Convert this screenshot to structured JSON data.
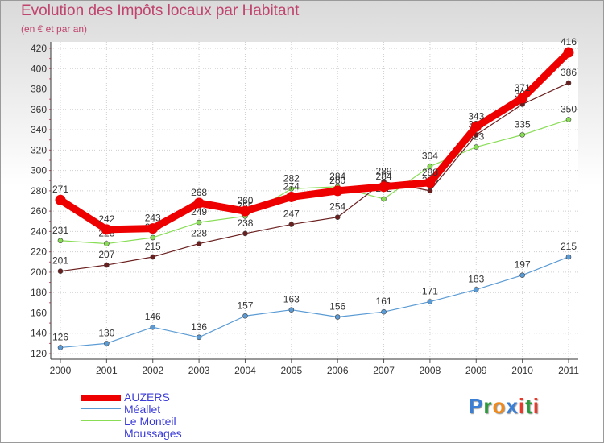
{
  "header": {
    "title": "Evolution des Impôts locaux par Habitant",
    "subtitle": "(en € et par an)"
  },
  "chart_data": {
    "type": "line",
    "title": "Evolution des Impôts locaux par Habitant",
    "subtitle": "(en € et par an)",
    "xlabel": "",
    "ylabel": "",
    "ylim": [
      120,
      420
    ],
    "yticks": [
      120,
      140,
      160,
      180,
      200,
      220,
      240,
      260,
      280,
      300,
      320,
      340,
      360,
      380,
      400,
      420
    ],
    "categories": [
      "2000",
      "2001",
      "2002",
      "2003",
      "2004",
      "2005",
      "2006",
      "2007",
      "2008",
      "2009",
      "2010",
      "2011"
    ],
    "grid": true,
    "legend_position": "bottom-left",
    "series": [
      {
        "name": "Méallet",
        "color": "#5b9bd5",
        "values": [
          126,
          130,
          146,
          136,
          157,
          163,
          156,
          161,
          171,
          183,
          197,
          215
        ]
      },
      {
        "name": "Le Monteil",
        "color": "#88dd55",
        "values": [
          231,
          228,
          234,
          249,
          255,
          282,
          284,
          272,
          304,
          323,
          335,
          350
        ]
      },
      {
        "name": "Moussages",
        "color": "#6b1f1f",
        "values": [
          201,
          207,
          215,
          228,
          238,
          247,
          254,
          289,
          280,
          335,
          365,
          386
        ]
      },
      {
        "name": "AUZERS",
        "color": "#ee0000",
        "values": [
          271,
          242,
          243,
          268,
          260,
          274,
          280,
          284,
          288,
          343,
          371,
          416
        ]
      }
    ]
  },
  "legend": {
    "items": [
      {
        "label": "AUZERS",
        "color": "#ee0000"
      },
      {
        "label": "Méallet",
        "color": "#5b9bd5"
      },
      {
        "label": "Le Monteil",
        "color": "#88dd55"
      },
      {
        "label": "Moussages",
        "color": "#6b1f1f"
      }
    ]
  },
  "logo": {
    "letters": [
      "P",
      "r",
      "o",
      "x",
      "i",
      "t",
      "i"
    ],
    "colors": [
      "#3a7fd5",
      "#2a9a3a",
      "#f08a1c",
      "#3a7fd5",
      "#e63a2a",
      "#2a9a3a",
      "#e63a2a"
    ]
  }
}
